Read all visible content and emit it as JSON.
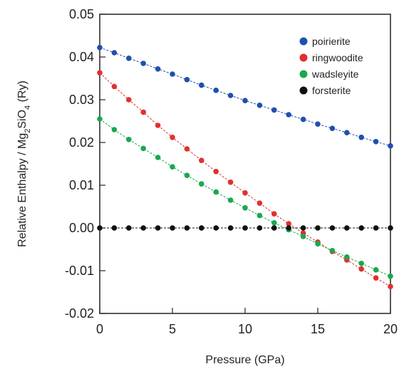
{
  "chart_data": {
    "type": "scatter",
    "xlabel": "Pressure (GPa)",
    "ylabel": "Relative Enthalpy / Mg2SiO4 (Ry)",
    "xlim": [
      0,
      20
    ],
    "ylim": [
      -0.02,
      0.05
    ],
    "xticks": [
      "0",
      "5",
      "10",
      "15",
      "20"
    ],
    "yticks": [
      "-0.02",
      "-0.01",
      "0.00",
      "0.01",
      "0.02",
      "0.03",
      "0.04",
      "0.05"
    ],
    "grid": false,
    "legend_position": "top-right",
    "x": [
      0,
      1,
      2,
      3,
      4,
      5,
      6,
      7,
      8,
      9,
      10,
      11,
      12,
      13,
      14,
      15,
      16,
      17,
      18,
      19,
      20
    ],
    "series": [
      {
        "name": "poirierite",
        "color": "#1f4fb0",
        "values": [
          0.0422,
          0.041,
          0.0397,
          0.0385,
          0.0372,
          0.036,
          0.0347,
          0.0334,
          0.0322,
          0.031,
          0.0298,
          0.0287,
          0.0276,
          0.0265,
          0.0254,
          0.0243,
          0.0233,
          0.0223,
          0.0212,
          0.0202,
          0.0192
        ]
      },
      {
        "name": "ringwoodite",
        "color": "#e03030",
        "values": [
          0.0363,
          0.0331,
          0.03,
          0.0271,
          0.024,
          0.0212,
          0.0185,
          0.0158,
          0.0132,
          0.0107,
          0.0082,
          0.0058,
          0.0033,
          0.001,
          -0.0012,
          -0.0033,
          -0.0055,
          -0.0075,
          -0.0096,
          -0.0117,
          -0.0137
        ]
      },
      {
        "name": "wadsleyite",
        "color": "#1aa84e",
        "values": [
          0.0255,
          0.023,
          0.0207,
          0.0186,
          0.0165,
          0.0143,
          0.0123,
          0.0103,
          0.0084,
          0.0065,
          0.0047,
          0.0029,
          0.0012,
          -0.0004,
          -0.002,
          -0.0037,
          -0.0053,
          -0.0068,
          -0.0083,
          -0.0098,
          -0.0113
        ]
      },
      {
        "name": "forsterite",
        "color": "#111111",
        "values": [
          0,
          0,
          0,
          0,
          0,
          0,
          0,
          0,
          0,
          0,
          0,
          0,
          0,
          0,
          0,
          0,
          0,
          0,
          0,
          0,
          0
        ]
      }
    ]
  }
}
